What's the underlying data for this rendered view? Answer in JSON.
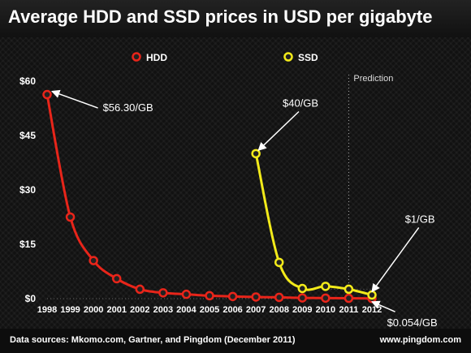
{
  "chart_data": {
    "type": "line",
    "title": "Average HDD and SSD prices in USD per gigabyte",
    "x": [
      1998,
      1999,
      2000,
      2001,
      2002,
      2003,
      2004,
      2005,
      2006,
      2007,
      2008,
      2009,
      2010,
      2011,
      2012
    ],
    "x_tick_labels": [
      "1998",
      "1999",
      "2000",
      "2001",
      "2002",
      "2003",
      "2004",
      "2005",
      "2006",
      "2007",
      "2008",
      "2009",
      "2010",
      "2011",
      "2012"
    ],
    "y_tick_labels": [
      "$60",
      "$45",
      "$30",
      "$15",
      "$0"
    ],
    "y_ticks": [
      60,
      45,
      30,
      15,
      0
    ],
    "ylim": [
      0,
      60
    ],
    "grid": false,
    "legend_position": "top-center",
    "prediction_start": 2011,
    "prediction_label": "Prediction",
    "series": [
      {
        "name": "HDD",
        "color": "#e8251a",
        "x": [
          1998,
          1999,
          2000,
          2001,
          2002,
          2003,
          2004,
          2005,
          2006,
          2007,
          2008,
          2009,
          2010,
          2011,
          2012
        ],
        "values": [
          56.3,
          22.5,
          10.5,
          5.5,
          2.6,
          1.6,
          1.2,
          0.8,
          0.6,
          0.45,
          0.35,
          0.2,
          0.15,
          0.1,
          0.054
        ]
      },
      {
        "name": "SSD",
        "color": "#f2ea1a",
        "x": [
          2007,
          2008,
          2009,
          2010,
          2011,
          2012
        ],
        "values": [
          40,
          10,
          2.8,
          3.4,
          2.6,
          1.0
        ]
      }
    ],
    "annotations": [
      {
        "text": "$56.30/GB",
        "x": 1998,
        "y": 56.3,
        "text_anchor_x": 2000.4,
        "text_anchor_y": 53.5
      },
      {
        "text": "$40/GB",
        "x": 2007,
        "y": 40,
        "text_anchor_x": 2008.5,
        "text_anchor_y": 52.5
      },
      {
        "text": "$1/GB",
        "x": 2012,
        "y": 1.0,
        "text_anchor_x": 2013.6,
        "text_anchor_y": 20.5
      },
      {
        "text": "$0.054/GB",
        "x": 2012,
        "y": 0.054,
        "text_anchor_x": 2013.7,
        "text_anchor_y": -6.3
      }
    ]
  },
  "footer": {
    "source": "Data sources: Mkomo.com, Gartner, and Pingdom (December 2011)",
    "site": "www.pingdom.com"
  }
}
